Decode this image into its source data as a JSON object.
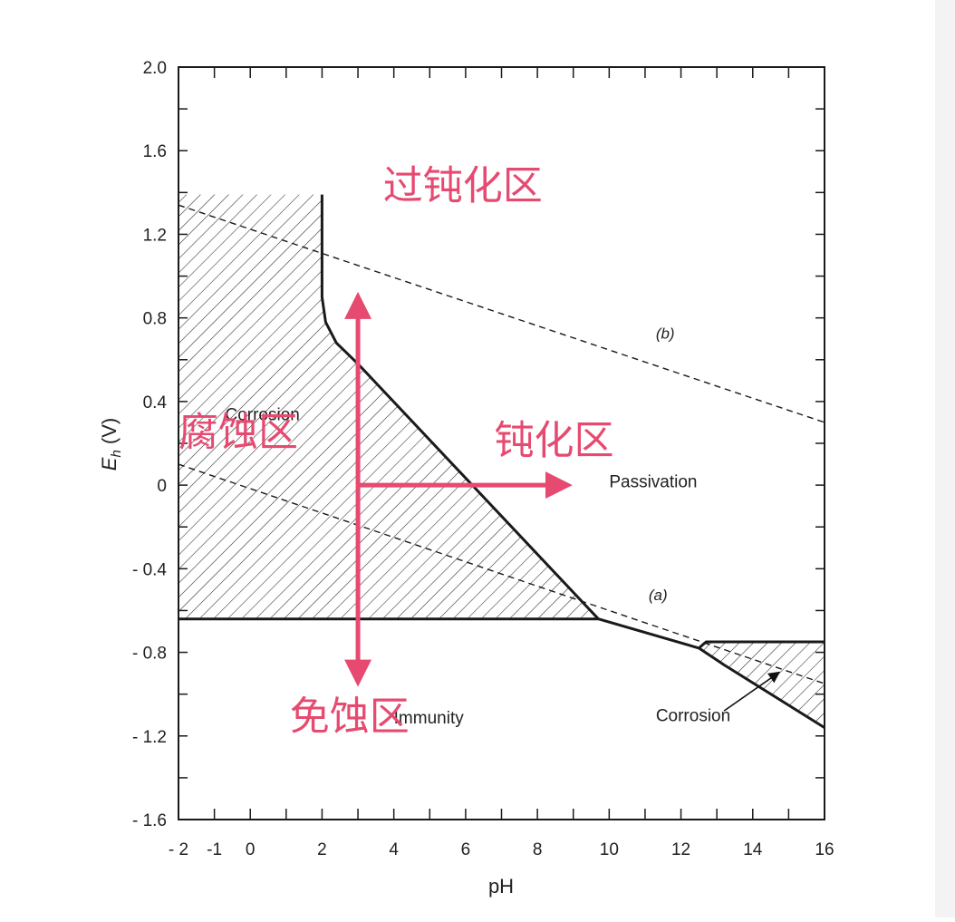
{
  "chart_data": {
    "type": "line",
    "xlabel": "pH",
    "ylabel_main": "E",
    "ylabel_sub": "h",
    "ylabel_unit": " (V)",
    "xlim": [
      -2,
      16
    ],
    "ylim": [
      -1.6,
      2.0
    ],
    "x_ticks": [
      {
        "value": -2,
        "label": "- 2"
      },
      {
        "value": -1,
        "label": "-1"
      },
      {
        "value": 0,
        "label": "0"
      },
      {
        "value": 2,
        "label": "2"
      },
      {
        "value": 4,
        "label": "4"
      },
      {
        "value": 6,
        "label": "6"
      },
      {
        "value": 8,
        "label": "8"
      },
      {
        "value": 10,
        "label": "10"
      },
      {
        "value": 12,
        "label": "12"
      },
      {
        "value": 14,
        "label": "14"
      },
      {
        "value": 16,
        "label": "16"
      }
    ],
    "y_ticks": [
      {
        "value": 2.0,
        "label": "2.0"
      },
      {
        "value": 1.6,
        "label": "1.6"
      },
      {
        "value": 1.2,
        "label": "1.2"
      },
      {
        "value": 0.8,
        "label": "0.8"
      },
      {
        "value": 0.4,
        "label": "0.4"
      },
      {
        "value": 0,
        "label": "0"
      },
      {
        "value": -0.4,
        "label": "- 0.4"
      },
      {
        "value": -0.8,
        "label": "- 0.8"
      },
      {
        "value": -1.2,
        "label": "- 1.2"
      },
      {
        "value": -1.6,
        "label": "- 1.6"
      }
    ],
    "series": [
      {
        "key": "boundary_acid",
        "points": [
          [
            2.0,
            1.39
          ],
          [
            2.0,
            0.9
          ],
          [
            2.1,
            0.78
          ],
          [
            2.4,
            0.68
          ],
          [
            3.0,
            0.58
          ],
          [
            9.7,
            -0.64
          ]
        ]
      },
      {
        "key": "boundary_immunity",
        "points": [
          [
            -2,
            -0.64
          ],
          [
            9.7,
            -0.64
          ]
        ]
      },
      {
        "key": "boundary_passive_low",
        "points": [
          [
            9.7,
            -0.64
          ],
          [
            12.5,
            -0.78
          ]
        ]
      },
      {
        "key": "boundary_alkaline_upper",
        "points": [
          [
            12.5,
            -0.78
          ],
          [
            12.7,
            -0.75
          ],
          [
            16.0,
            -0.75
          ]
        ]
      },
      {
        "key": "boundary_alkaline_lower",
        "points": [
          [
            12.5,
            -0.78
          ],
          [
            13.2,
            -0.86
          ],
          [
            16.0,
            -1.16
          ]
        ]
      },
      {
        "key": "line_a",
        "name": "(a)",
        "dashed": true,
        "points": [
          [
            -2,
            0.1
          ],
          [
            16,
            -0.95
          ]
        ]
      },
      {
        "key": "line_b",
        "name": "(b)",
        "dashed": true,
        "points": [
          [
            -2,
            1.34
          ],
          [
            16,
            0.3
          ]
        ]
      }
    ],
    "regions": [
      {
        "key": "corrosion_acid",
        "hatched": true,
        "points": [
          [
            -2,
            1.39
          ],
          [
            2.0,
            1.39
          ],
          [
            2.0,
            0.9
          ],
          [
            2.1,
            0.78
          ],
          [
            2.4,
            0.68
          ],
          [
            3.0,
            0.58
          ],
          [
            9.7,
            -0.64
          ],
          [
            -2,
            -0.64
          ]
        ]
      },
      {
        "key": "corrosion_alkaline",
        "hatched": true,
        "points": [
          [
            12.5,
            -0.78
          ],
          [
            12.7,
            -0.75
          ],
          [
            16.0,
            -0.75
          ],
          [
            16.0,
            -1.16
          ],
          [
            13.2,
            -0.86
          ]
        ]
      }
    ],
    "annotations": [
      {
        "key": "corrosion_left",
        "text": "Corrosion",
        "x": -0.7,
        "y": 0.31
      },
      {
        "key": "passivation",
        "text": "Passivation",
        "x": 10.0,
        "y": -0.01
      },
      {
        "key": "immunity",
        "text": "Immunity",
        "x": 4.0,
        "y": -1.14
      },
      {
        "key": "corrosion_right",
        "text": "Corrosion",
        "x": 11.3,
        "y": -1.13
      },
      {
        "key": "label_a",
        "text": "(a)",
        "x": 11.1,
        "y": -0.55
      },
      {
        "key": "label_b",
        "text": "(b)",
        "x": 11.3,
        "y": 0.7
      }
    ],
    "zh_labels": [
      {
        "key": "transpassive",
        "text": "过钝化区",
        "x": 3.7,
        "y": 1.37
      },
      {
        "key": "corrosion",
        "text": "腐蚀区",
        "x": -2.0,
        "y": 0.19
      },
      {
        "key": "passive",
        "text": "钝化区",
        "x": 6.8,
        "y": 0.15
      },
      {
        "key": "immunity",
        "text": "免蚀区",
        "x": 1.1,
        "y": -1.17
      }
    ],
    "arrows": [
      {
        "key": "arrow_up",
        "from": [
          3.0,
          0.0
        ],
        "to": [
          3.0,
          0.86
        ]
      },
      {
        "key": "arrow_down",
        "from": [
          3.0,
          0.0
        ],
        "to": [
          3.0,
          -0.9
        ]
      },
      {
        "key": "arrow_right",
        "from": [
          3.0,
          0.0
        ],
        "to": [
          8.6,
          0.0
        ]
      },
      {
        "key": "arrow_corrosion",
        "from": [
          13.2,
          -1.08
        ],
        "to": [
          14.7,
          -0.9
        ]
      }
    ],
    "colors": {
      "accent": "#e64a70",
      "ink": "#1a1a1a"
    }
  }
}
